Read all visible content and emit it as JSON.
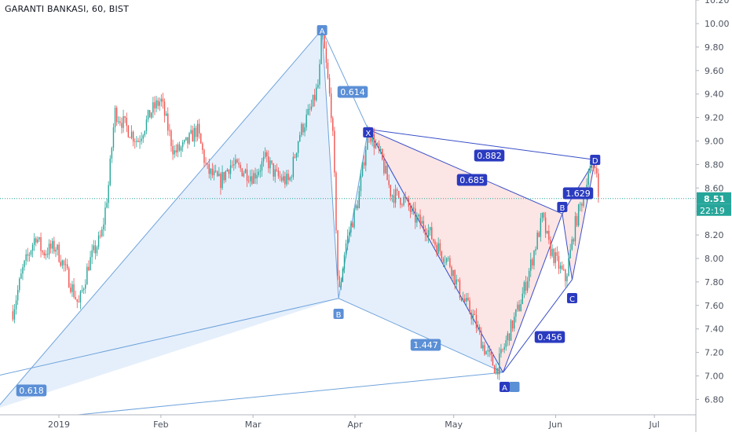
{
  "chart_data": {
    "type": "candlestick",
    "title": "GARANTI BANKASI, 60, BIST",
    "y_axis": {
      "range": [
        6.73,
        10.27
      ],
      "ticks": [
        "10.20",
        "10.00",
        "9.80",
        "9.60",
        "9.40",
        "9.20",
        "9.00",
        "8.80",
        "8.60",
        "8.40",
        "8.20",
        "8.00",
        "7.80",
        "7.60",
        "7.40",
        "7.20",
        "7.00",
        "6.80"
      ]
    },
    "x_axis": {
      "ticks": [
        "2019",
        "Feb",
        "Mar",
        "Apr",
        "May",
        "Jun",
        "Jul"
      ]
    },
    "last_price": "8.51",
    "countdown": "22:19",
    "colors": {
      "up": "#26a69a",
      "down": "#ef5350",
      "pattern_blue_fill": "#dceafa",
      "pattern_blue_line": "#6fa3dc",
      "pattern_red_fill": "#fbe0e0",
      "pattern_red_line": "#3a4fc8",
      "price_line": "#26a69a"
    },
    "price_path_daily": [
      {
        "date": "2018-12-18",
        "close": 7.55
      },
      {
        "date": "2018-12-21",
        "close": 7.9
      },
      {
        "date": "2018-12-25",
        "close": 8.2
      },
      {
        "date": "2018-12-27",
        "close": 8.05
      },
      {
        "date": "2018-12-31",
        "close": 8.1
      },
      {
        "date": "2019-01-03",
        "close": 7.9
      },
      {
        "date": "2019-01-07",
        "close": 7.6
      },
      {
        "date": "2019-01-10",
        "close": 7.95
      },
      {
        "date": "2019-01-14",
        "close": 8.2
      },
      {
        "date": "2019-01-16",
        "close": 8.6
      },
      {
        "date": "2019-01-18",
        "close": 9.25
      },
      {
        "date": "2019-01-22",
        "close": 9.1
      },
      {
        "date": "2019-01-25",
        "close": 9.0
      },
      {
        "date": "2019-01-29",
        "close": 9.25
      },
      {
        "date": "2019-02-01",
        "close": 9.35
      },
      {
        "date": "2019-02-05",
        "close": 8.9
      },
      {
        "date": "2019-02-08",
        "close": 8.95
      },
      {
        "date": "2019-02-12",
        "close": 9.1
      },
      {
        "date": "2019-02-15",
        "close": 8.75
      },
      {
        "date": "2019-02-19",
        "close": 8.65
      },
      {
        "date": "2019-02-22",
        "close": 8.8
      },
      {
        "date": "2019-02-26",
        "close": 8.75
      },
      {
        "date": "2019-03-01",
        "close": 8.7
      },
      {
        "date": "2019-03-05",
        "close": 8.85
      },
      {
        "date": "2019-03-08",
        "close": 8.7
      },
      {
        "date": "2019-03-12",
        "close": 8.65
      },
      {
        "date": "2019-03-15",
        "close": 9.05
      },
      {
        "date": "2019-03-19",
        "close": 9.3
      },
      {
        "date": "2019-03-21",
        "close": 9.5
      },
      {
        "date": "2019-03-22",
        "close": 9.95
      },
      {
        "date": "2019-03-25",
        "close": 9.2
      },
      {
        "date": "2019-03-26",
        "close": 8.5
      },
      {
        "date": "2019-03-27",
        "close": 7.66
      },
      {
        "date": "2019-03-29",
        "close": 8.1
      },
      {
        "date": "2019-04-02",
        "close": 8.5
      },
      {
        "date": "2019-04-05",
        "close": 9.1
      },
      {
        "date": "2019-04-09",
        "close": 8.85
      },
      {
        "date": "2019-04-12",
        "close": 8.55
      },
      {
        "date": "2019-04-16",
        "close": 8.5
      },
      {
        "date": "2019-04-19",
        "close": 8.35
      },
      {
        "date": "2019-04-23",
        "close": 8.25
      },
      {
        "date": "2019-04-26",
        "close": 8.1
      },
      {
        "date": "2019-04-30",
        "close": 7.95
      },
      {
        "date": "2019-05-03",
        "close": 7.7
      },
      {
        "date": "2019-05-07",
        "close": 7.5
      },
      {
        "date": "2019-05-10",
        "close": 7.25
      },
      {
        "date": "2019-05-14",
        "close": 7.05
      },
      {
        "date": "2019-05-17",
        "close": 7.3
      },
      {
        "date": "2019-05-21",
        "close": 7.6
      },
      {
        "date": "2019-05-24",
        "close": 7.9
      },
      {
        "date": "2019-05-28",
        "close": 8.35
      },
      {
        "date": "2019-05-30",
        "close": 8.1
      },
      {
        "date": "2019-06-04",
        "close": 7.82
      },
      {
        "date": "2019-06-07",
        "close": 8.3
      },
      {
        "date": "2019-06-11",
        "close": 8.7
      },
      {
        "date": "2019-06-13",
        "close": 8.84
      },
      {
        "date": "2019-06-14",
        "close": 8.51
      }
    ],
    "patterns": [
      {
        "name": "large harmonic (blue)",
        "points": [
          {
            "label": "",
            "date": "2018-12-13",
            "price": 6.72
          },
          {
            "label": "A",
            "date": "2019-03-22",
            "price": 9.95
          },
          {
            "label": "B",
            "date": "2019-03-27",
            "price": 7.66
          },
          {
            "label": "",
            "date": "2019-05-16",
            "price": 7.03
          }
        ],
        "extra_line": [
          {
            "date": "2018-12-13",
            "price": 7.0
          },
          {
            "date": "2019-03-27",
            "price": 7.66
          }
        ],
        "extra_line2": [
          {
            "date": "2018-12-13",
            "price": 6.6
          },
          {
            "date": "2019-05-16",
            "price": 7.03
          }
        ],
        "ratios": [
          {
            "text": "0.614",
            "between": [
              "A",
              "X"
            ]
          },
          {
            "text": "1.447",
            "between": [
              "B",
              "A"
            ]
          },
          {
            "text": "0.618",
            "between": [
              "X0",
              "B"
            ]
          }
        ]
      },
      {
        "name": "XABCD harmonic (red)",
        "points": [
          {
            "label": "X",
            "date": "2019-04-05",
            "price": 9.1
          },
          {
            "label": "A",
            "date": "2019-05-16",
            "price": 7.03
          },
          {
            "label": "B",
            "date": "2019-06-03",
            "price": 8.38
          },
          {
            "label": "C",
            "date": "2019-06-06",
            "price": 7.82
          },
          {
            "label": "D",
            "date": "2019-06-13",
            "price": 8.84
          }
        ],
        "ratios": [
          {
            "text": "0.882",
            "between": [
              "X",
              "D"
            ]
          },
          {
            "text": "0.685",
            "between": [
              "X",
              "B"
            ]
          },
          {
            "text": "1.629",
            "between": [
              "B",
              "D"
            ]
          },
          {
            "text": "0.456",
            "between": [
              "A",
              "C"
            ]
          }
        ]
      }
    ]
  }
}
